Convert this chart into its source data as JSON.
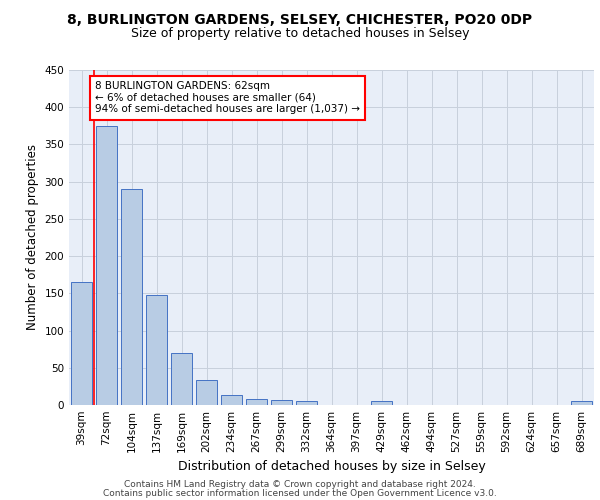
{
  "title1": "8, BURLINGTON GARDENS, SELSEY, CHICHESTER, PO20 0DP",
  "title2": "Size of property relative to detached houses in Selsey",
  "xlabel": "Distribution of detached houses by size in Selsey",
  "ylabel": "Number of detached properties",
  "categories": [
    "39sqm",
    "72sqm",
    "104sqm",
    "137sqm",
    "169sqm",
    "202sqm",
    "234sqm",
    "267sqm",
    "299sqm",
    "332sqm",
    "364sqm",
    "397sqm",
    "429sqm",
    "462sqm",
    "494sqm",
    "527sqm",
    "559sqm",
    "592sqm",
    "624sqm",
    "657sqm",
    "689sqm"
  ],
  "values": [
    165,
    375,
    290,
    148,
    70,
    33,
    14,
    8,
    7,
    5,
    0,
    0,
    5,
    0,
    0,
    0,
    0,
    0,
    0,
    0,
    5
  ],
  "bar_color": "#b8cce4",
  "bar_edge_color": "#4472c4",
  "grid_color": "#c8d0dc",
  "bg_color": "#e8eef8",
  "annotation_text": "8 BURLINGTON GARDENS: 62sqm\n← 6% of detached houses are smaller (64)\n94% of semi-detached houses are larger (1,037) →",
  "annotation_box_color": "#ff0000",
  "footer1": "Contains HM Land Registry data © Crown copyright and database right 2024.",
  "footer2": "Contains public sector information licensed under the Open Government Licence v3.0.",
  "ylim": [
    0,
    450
  ],
  "yticks": [
    0,
    50,
    100,
    150,
    200,
    250,
    300,
    350,
    400,
    450
  ],
  "title1_fontsize": 10,
  "title2_fontsize": 9,
  "xlabel_fontsize": 9,
  "ylabel_fontsize": 8.5,
  "tick_fontsize": 7.5,
  "footer_fontsize": 6.5
}
